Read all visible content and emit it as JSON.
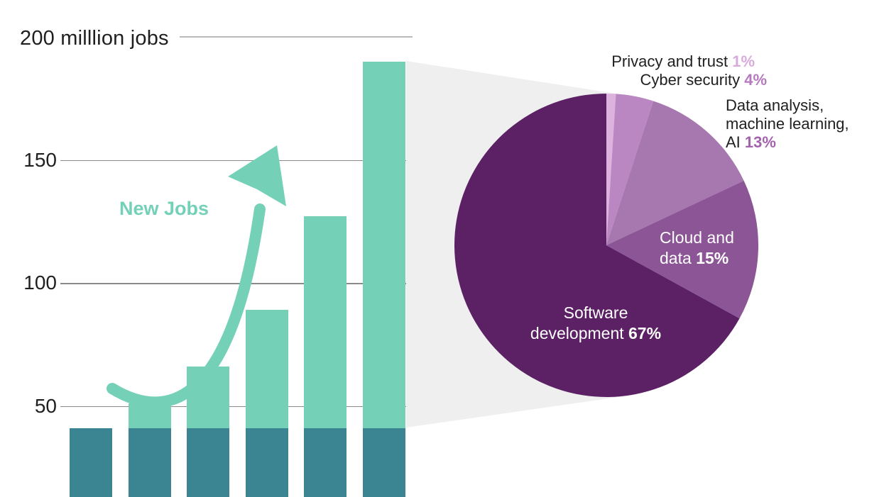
{
  "colors": {
    "mint": "#74d1b8",
    "dark_teal": "#3b8491",
    "callout_gray": "#efeff0",
    "gridline": "#8a8a8a",
    "title_gridline": "#b9b9b9",
    "text_dark": "#1f1f1f",
    "inside_label_white": "#ffffff"
  },
  "chart_data": [
    {
      "type": "bar",
      "stacked": true,
      "title": "200 milllion jobs",
      "annotation": "New Jobs",
      "num_bars": 6,
      "totals": [
        41,
        51,
        66,
        89,
        127,
        190
      ],
      "base_segment_values": [
        41,
        41,
        41,
        41,
        41,
        41
      ],
      "top_segment_values": [
        0,
        10,
        25,
        48,
        86,
        149
      ],
      "base_color": "#3b8491",
      "top_color": "#74d1b8",
      "ylim": [
        0,
        200
      ],
      "yticks": [
        50,
        100,
        150,
        200
      ],
      "tick_labels_shown": [
        "50",
        "100",
        "150"
      ],
      "grid": true
    },
    {
      "type": "pie",
      "start_angle_deg": 0,
      "direction": "clockwise",
      "slices": [
        {
          "name": "privacy-and-trust",
          "label": "Privacy and trust",
          "value": 1,
          "pct": "1%",
          "color": "#ddb2de",
          "pct_color": "#d8abda",
          "label_position": "outside"
        },
        {
          "name": "cyber-security",
          "label": "Cyber security",
          "value": 4,
          "pct": "4%",
          "color": "#ba87c2",
          "pct_color": "#b678be",
          "label_position": "outside"
        },
        {
          "name": "data-analysis-ml-ai",
          "label": "Data analysis, machine learning, AI",
          "label_lines": [
            "Data analysis,",
            "machine learning,",
            "AI"
          ],
          "value": 13,
          "pct": "13%",
          "color": "#a777b0",
          "pct_color": "#a362ac",
          "label_position": "outside"
        },
        {
          "name": "cloud-and-data",
          "label": "Cloud and data",
          "label_lines": [
            "Cloud and",
            "data"
          ],
          "value": 15,
          "pct": "15%",
          "color": "#8b5596",
          "pct_color": "#ffffff",
          "label_position": "inside"
        },
        {
          "name": "software-development",
          "label": "Software development",
          "label_lines": [
            "Software",
            "development"
          ],
          "value": 67,
          "pct": "67%",
          "color": "#5b2164",
          "pct_color": "#ffffff",
          "label_position": "inside"
        }
      ]
    }
  ]
}
